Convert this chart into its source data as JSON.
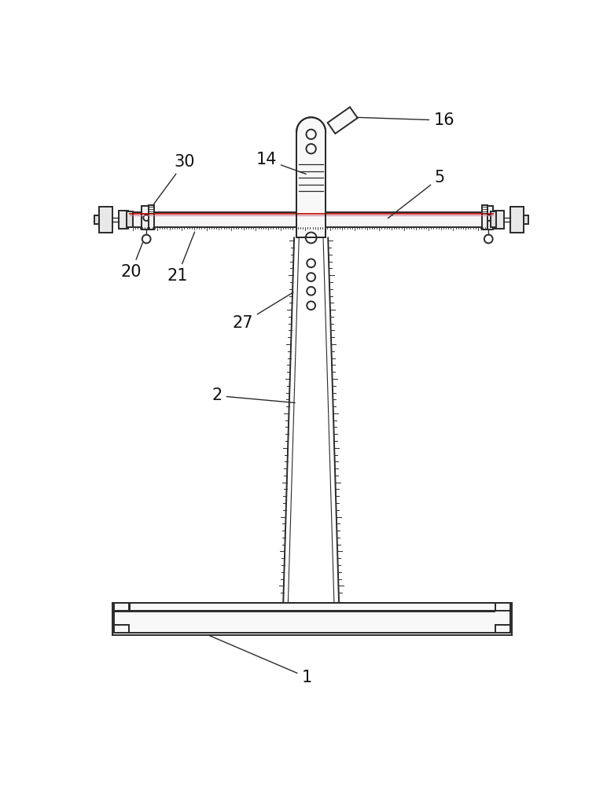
{
  "bg_color": "#ffffff",
  "line_color": "#2a2a2a",
  "label_color": "#111111",
  "label_fontsize": 15,
  "ann_lw": 1.0
}
